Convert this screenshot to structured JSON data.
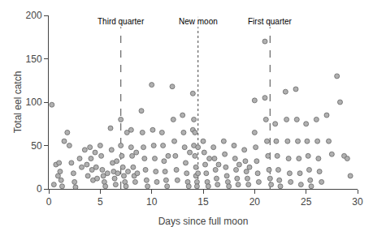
{
  "chart_data": {
    "type": "scatter",
    "x": [
      0.3,
      0.5,
      0.7,
      0.9,
      1.0,
      1.1,
      1.2,
      1.3,
      1.5,
      1.8,
      2.0,
      2.2,
      2.4,
      2.5,
      2.6,
      3.0,
      3.2,
      3.5,
      3.7,
      3.8,
      4.0,
      4.1,
      4.2,
      4.3,
      4.5,
      4.6,
      4.7,
      5.0,
      5.1,
      5.2,
      5.3,
      5.4,
      5.5,
      5.7,
      6.0,
      6.1,
      6.2,
      6.3,
      6.4,
      6.5,
      6.6,
      6.7,
      7.0,
      7.0,
      7.1,
      7.2,
      7.3,
      7.4,
      7.5,
      7.6,
      7.7,
      8.0,
      8.0,
      8.1,
      8.2,
      8.3,
      8.4,
      8.5,
      8.6,
      9.0,
      9.1,
      9.2,
      9.3,
      9.4,
      9.5,
      9.6,
      10.0,
      10.1,
      10.2,
      10.3,
      10.4,
      10.5,
      11.0,
      11.1,
      11.2,
      11.3,
      11.4,
      11.5,
      11.6,
      12.0,
      12.1,
      12.2,
      12.3,
      12.4,
      12.5,
      13.0,
      13.1,
      13.2,
      13.3,
      13.4,
      13.5,
      13.6,
      13.7,
      14.0,
      14.0,
      14.1,
      14.1,
      14.2,
      14.2,
      14.3,
      14.3,
      14.4,
      14.4,
      14.5,
      14.5,
      15.0,
      15.1,
      15.2,
      15.3,
      15.4,
      15.5,
      15.6,
      16.0,
      16.1,
      16.2,
      16.3,
      16.4,
      16.5,
      17.0,
      17.1,
      17.2,
      17.3,
      17.4,
      17.5,
      18.0,
      18.1,
      18.2,
      18.3,
      18.4,
      18.5,
      19.0,
      19.1,
      19.2,
      19.3,
      19.4,
      19.5,
      20.0,
      20.0,
      20.1,
      20.2,
      20.3,
      20.4,
      21.0,
      21.0,
      21.1,
      21.2,
      21.3,
      21.4,
      21.5,
      21.6,
      22.0,
      22.1,
      22.2,
      22.3,
      22.4,
      22.5,
      23.0,
      23.1,
      23.2,
      23.3,
      23.4,
      23.5,
      24.0,
      24.1,
      24.2,
      24.3,
      24.4,
      24.5,
      25.0,
      25.1,
      25.2,
      25.3,
      25.4,
      25.5,
      26.0,
      26.1,
      26.2,
      26.3,
      26.5,
      27.0,
      27.2,
      27.5,
      28.0,
      28.3,
      28.7,
      29.0,
      29.3
    ],
    "values": [
      97,
      5,
      28,
      15,
      30,
      20,
      10,
      3,
      55,
      65,
      50,
      30,
      18,
      8,
      2,
      35,
      25,
      45,
      28,
      15,
      48,
      35,
      22,
      10,
      42,
      25,
      12,
      50,
      38,
      22,
      15,
      8,
      3,
      18,
      70,
      45,
      30,
      20,
      12,
      5,
      32,
      18,
      80,
      50,
      38,
      25,
      15,
      8,
      3,
      65,
      20,
      68,
      48,
      38,
      25,
      15,
      8,
      42,
      18,
      90,
      65,
      48,
      35,
      22,
      10,
      3,
      120,
      68,
      50,
      35,
      20,
      8,
      65,
      50,
      32,
      20,
      10,
      3,
      38,
      118,
      80,
      55,
      38,
      22,
      10,
      85,
      65,
      48,
      30,
      18,
      8,
      3,
      42,
      110,
      68,
      80,
      50,
      65,
      38,
      25,
      15,
      8,
      3,
      48,
      18,
      55,
      42,
      28,
      18,
      8,
      3,
      35,
      48,
      35,
      22,
      12,
      5,
      28,
      55,
      40,
      25,
      15,
      8,
      3,
      50,
      35,
      22,
      12,
      5,
      28,
      45,
      32,
      20,
      12,
      5,
      25,
      102,
      65,
      48,
      32,
      18,
      8,
      170,
      105,
      80,
      55,
      38,
      22,
      12,
      5,
      75,
      55,
      38,
      22,
      10,
      3,
      112,
      80,
      55,
      35,
      18,
      8,
      115,
      80,
      55,
      35,
      18,
      5,
      75,
      55,
      38,
      22,
      10,
      3,
      80,
      55,
      35,
      20,
      8,
      85,
      55,
      40,
      130,
      100,
      38,
      35,
      15
    ],
    "color": "#b0b0b0",
    "marker": "circle",
    "annotations": [
      {
        "x": 7.0,
        "label": "Third quarter",
        "line_style": "dashed",
        "color": "#666666"
      },
      {
        "x": 14.5,
        "label": "New moon",
        "line_style": "dotted",
        "color": "#666666"
      },
      {
        "x": 21.5,
        "label": "First quarter",
        "line_style": "dashed",
        "color": "#666666"
      }
    ],
    "xlim": [
      0,
      30
    ],
    "ylim": [
      0,
      200
    ],
    "xticks": [
      0,
      5,
      10,
      15,
      20,
      25,
      30
    ],
    "yticks": [
      0,
      50,
      100,
      150,
      200
    ],
    "xlabel": "Days since full moon",
    "ylabel": "Total eel catch",
    "grid": false
  }
}
